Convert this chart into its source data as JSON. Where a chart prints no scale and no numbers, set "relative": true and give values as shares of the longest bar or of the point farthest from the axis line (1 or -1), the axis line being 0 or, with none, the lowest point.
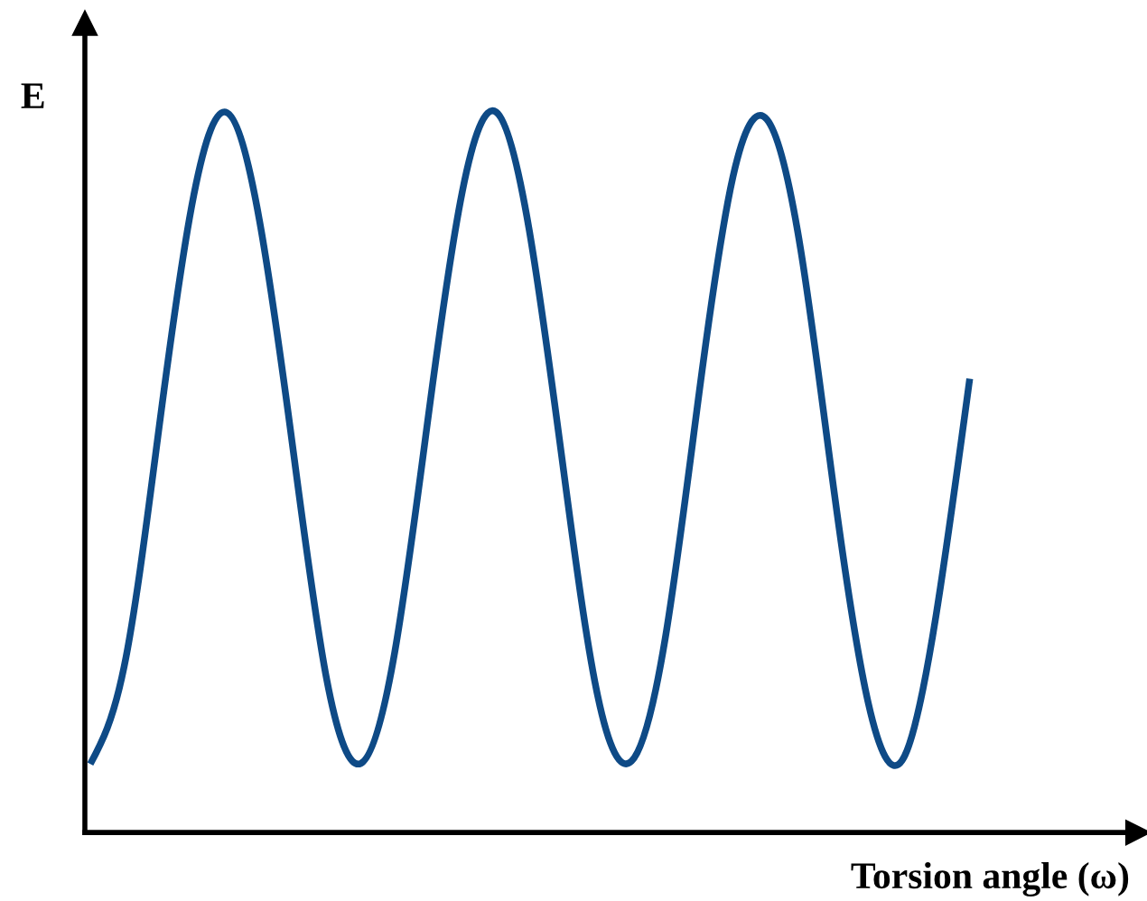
{
  "chart_data": {
    "type": "line",
    "relative": true,
    "xlabel": "Torsion angle (ω)",
    "ylabel": "E",
    "categories": [
      null,
      null,
      null,
      null,
      null,
      null,
      null,
      null,
      null,
      null,
      null,
      null,
      null,
      null,
      null,
      null,
      null,
      null,
      null,
      null,
      null,
      null,
      null,
      null,
      null,
      null,
      null
    ],
    "series": [
      {
        "color": "#0e4a86",
        "values": [
          0.095,
          0.23,
          0.55,
          0.87,
          1,
          0.85,
          0.53,
          0.21,
          0.096,
          0.25,
          0.58,
          0.89,
          1,
          0.83,
          0.5,
          0.19,
          0.099,
          0.27,
          0.61,
          0.91,
          0.99,
          0.81,
          0.47,
          0.18,
          0.1,
          0.3,
          0.63
        ]
      }
    ],
    "grid": false,
    "marker": "none",
    "line_style": "solid"
  }
}
